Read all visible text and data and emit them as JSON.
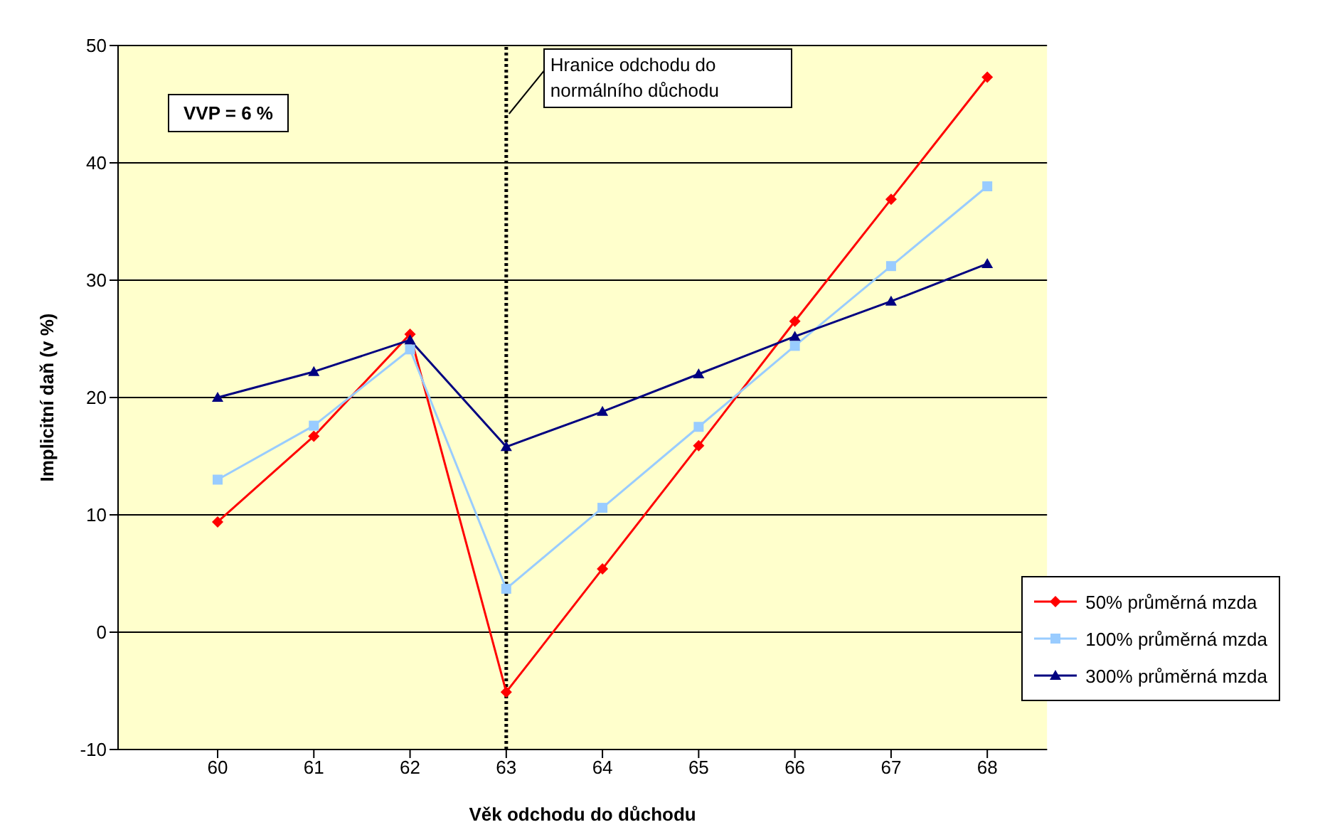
{
  "chart_data": {
    "type": "line",
    "xlabel": "Věk odchodu do důchodu",
    "ylabel": "Implicitní daň (v %)",
    "categories": [
      "60",
      "61",
      "62",
      "63",
      "64",
      "65",
      "66",
      "67",
      "68"
    ],
    "series": [
      {
        "name": "50% průměrná mzda",
        "color": "#ff0000",
        "marker": "diamond",
        "values": [
          9.4,
          16.7,
          25.4,
          -5.1,
          5.4,
          15.9,
          26.5,
          36.9,
          47.3
        ]
      },
      {
        "name": "100% průměrná mzda",
        "color": "#99ccff",
        "marker": "square",
        "values": [
          13.0,
          17.6,
          24.1,
          3.7,
          10.6,
          17.5,
          24.4,
          31.2,
          38.0
        ]
      },
      {
        "name": "300% průměrná mzda",
        "color": "#000080",
        "marker": "triangle",
        "values": [
          20.0,
          22.2,
          24.9,
          15.8,
          18.8,
          22.0,
          25.2,
          28.2,
          31.4
        ]
      }
    ],
    "ylim": [
      -10,
      50
    ],
    "yticks": [
      -10,
      0,
      10,
      20,
      30,
      40,
      50
    ],
    "grid": "y",
    "legend": "bottom right",
    "line_style": "solid",
    "ref_lines": [
      {
        "axis": "x",
        "value": "63",
        "label": "Hranice odchodu do normálního důchodu",
        "color": "#000000",
        "line_style": "dotted"
      }
    ],
    "annotations": [
      "VVP = 6 %"
    ]
  }
}
